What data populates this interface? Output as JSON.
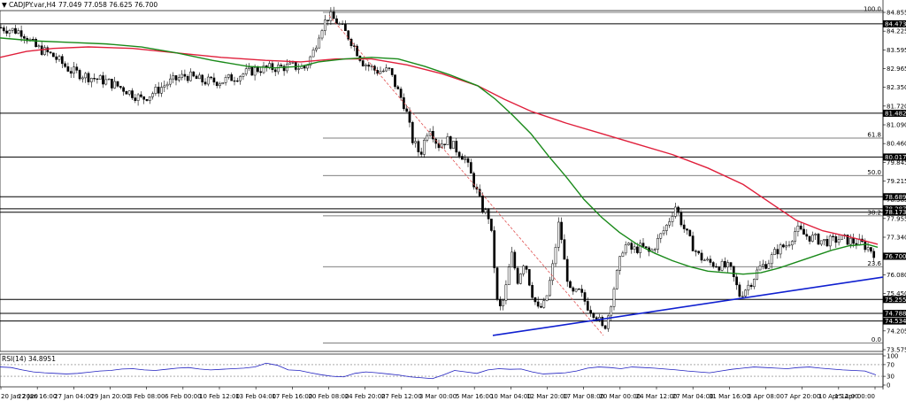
{
  "header": {
    "symbol": "CADJPY.var,H4",
    "ohlc": "77.049 77.058 76.625 76.700"
  },
  "rsi_header": "RSI(14) 34.8951",
  "colors": {
    "bull": "#000000",
    "bear": "#000000",
    "ma_fast": "#1a8a1a",
    "ma_slow": "#e0203c",
    "trend": "#1020d0",
    "fib_diag": "#e05050",
    "hline": "#000000",
    "fib": "#555555",
    "rsi": "#2020c0"
  },
  "chart_data": [
    {
      "type": "candlestick",
      "title": "CADJPY.var,H4",
      "ylim": [
        73.575,
        84.855
      ],
      "y_ticks": [
        "84.855",
        "84.225",
        "83.595",
        "82.965",
        "82.350",
        "81.720",
        "81.090",
        "80.460",
        "79.845",
        "79.215",
        "78.585",
        "77.955",
        "77.340",
        "76.700",
        "76.080",
        "75.450",
        "74.835",
        "74.205",
        "73.575"
      ],
      "x_ticks": [
        "20 Jan 2020",
        "22 Jan 16:00",
        "27 Jan 04:00",
        "29 Jan 20:00",
        "3 Feb 08:00",
        "6 Feb 00:00",
        "10 Feb 12:00",
        "13 Feb 04:00",
        "17 Feb 16:00",
        "20 Feb 08:00",
        "24 Feb 20:00",
        "27 Feb 12:00",
        "3 Mar 00:00",
        "5 Mar 16:00",
        "10 Mar 04:00",
        "12 Mar 20:00",
        "17 Mar 08:00",
        "20 Mar 00:00",
        "24 Mar 12:00",
        "27 Mar 04:00",
        "31 Mar 16:00",
        "3 Apr 08:00",
        "7 Apr 20:00",
        "10 Apr 12:00",
        "15 Apr 00:00"
      ],
      "price_path": [
        [
          0,
          84.35
        ],
        [
          25,
          84.2
        ],
        [
          40,
          83.7
        ],
        [
          60,
          83.4
        ],
        [
          80,
          82.9
        ],
        [
          100,
          82.7
        ],
        [
          120,
          82.55
        ],
        [
          140,
          82.3
        ],
        [
          160,
          81.95
        ],
        [
          175,
          82.2
        ],
        [
          190,
          82.5
        ],
        [
          210,
          82.75
        ],
        [
          230,
          82.55
        ],
        [
          250,
          82.55
        ],
        [
          270,
          82.75
        ],
        [
          290,
          82.95
        ],
        [
          310,
          83.0
        ],
        [
          330,
          83.05
        ],
        [
          345,
          83.0
        ],
        [
          355,
          83.6
        ],
        [
          362,
          84.3
        ],
        [
          372,
          84.75
        ],
        [
          382,
          84.5
        ],
        [
          395,
          84.0
        ],
        [
          410,
          83.2
        ],
        [
          425,
          82.9
        ],
        [
          440,
          82.9
        ],
        [
          450,
          82.2
        ],
        [
          458,
          81.7
        ],
        [
          466,
          80.6
        ],
        [
          475,
          80.1
        ],
        [
          485,
          81.1
        ],
        [
          495,
          80.4
        ],
        [
          505,
          80.6
        ],
        [
          515,
          80.3
        ],
        [
          525,
          80.0
        ],
        [
          535,
          79.2
        ],
        [
          545,
          78.3
        ],
        [
          553,
          78.0
        ],
        [
          557,
          77.0
        ],
        [
          563,
          74.8
        ],
        [
          570,
          75.3
        ],
        [
          578,
          76.8
        ],
        [
          585,
          75.9
        ],
        [
          593,
          76.6
        ],
        [
          600,
          75.6
        ],
        [
          608,
          74.9
        ],
        [
          616,
          75.1
        ],
        [
          624,
          76.2
        ],
        [
          632,
          77.9
        ],
        [
          638,
          76.5
        ],
        [
          645,
          75.4
        ],
        [
          655,
          75.5
        ],
        [
          665,
          75.0
        ],
        [
          675,
          74.7
        ],
        [
          682,
          74.2
        ],
        [
          688,
          74.8
        ],
        [
          695,
          75.8
        ],
        [
          705,
          77.1
        ],
        [
          715,
          76.9
        ],
        [
          725,
          77.0
        ],
        [
          735,
          76.8
        ],
        [
          745,
          77.3
        ],
        [
          755,
          77.8
        ],
        [
          763,
          78.4
        ],
        [
          772,
          77.7
        ],
        [
          780,
          77.2
        ],
        [
          790,
          76.7
        ],
        [
          800,
          76.5
        ],
        [
          812,
          76.4
        ],
        [
          825,
          76.3
        ],
        [
          836,
          75.4
        ],
        [
          848,
          75.8
        ],
        [
          858,
          76.3
        ],
        [
          868,
          76.5
        ],
        [
          878,
          76.9
        ],
        [
          890,
          77.1
        ],
        [
          900,
          77.6
        ],
        [
          910,
          77.4
        ],
        [
          920,
          77.3
        ],
        [
          930,
          77.2
        ],
        [
          940,
          77.2
        ],
        [
          950,
          77.3
        ],
        [
          962,
          77.2
        ],
        [
          975,
          77.1
        ],
        [
          985,
          76.9
        ],
        [
          992,
          76.7
        ]
      ],
      "ma_fast_points": [
        [
          0,
          84.0
        ],
        [
          40,
          83.9
        ],
        [
          80,
          83.85
        ],
        [
          120,
          83.8
        ],
        [
          160,
          83.7
        ],
        [
          200,
          83.5
        ],
        [
          240,
          83.25
        ],
        [
          280,
          83.05
        ],
        [
          310,
          83.0
        ],
        [
          340,
          83.05
        ],
        [
          360,
          83.2
        ],
        [
          390,
          83.3
        ],
        [
          420,
          83.35
        ],
        [
          450,
          83.3
        ],
        [
          480,
          83.05
        ],
        [
          510,
          82.75
        ],
        [
          540,
          82.4
        ],
        [
          560,
          81.95
        ],
        [
          580,
          81.4
        ],
        [
          600,
          80.8
        ],
        [
          620,
          80.05
        ],
        [
          640,
          79.35
        ],
        [
          660,
          78.6
        ],
        [
          680,
          78.0
        ],
        [
          700,
          77.5
        ],
        [
          720,
          77.1
        ],
        [
          740,
          76.8
        ],
        [
          760,
          76.55
        ],
        [
          780,
          76.35
        ],
        [
          800,
          76.2
        ],
        [
          820,
          76.15
        ],
        [
          840,
          76.1
        ],
        [
          860,
          76.15
        ],
        [
          880,
          76.3
        ],
        [
          900,
          76.5
        ],
        [
          920,
          76.7
        ],
        [
          940,
          76.9
        ],
        [
          960,
          77.05
        ],
        [
          980,
          77.1
        ],
        [
          992,
          77.0
        ]
      ],
      "ma_slow_points": [
        [
          0,
          83.35
        ],
        [
          30,
          83.55
        ],
        [
          60,
          83.65
        ],
        [
          100,
          83.7
        ],
        [
          150,
          83.65
        ],
        [
          200,
          83.5
        ],
        [
          250,
          83.35
        ],
        [
          300,
          83.25
        ],
        [
          340,
          83.2
        ],
        [
          380,
          83.3
        ],
        [
          420,
          83.3
        ],
        [
          460,
          83.1
        ],
        [
          500,
          82.8
        ],
        [
          540,
          82.4
        ],
        [
          570,
          81.95
        ],
        [
          600,
          81.55
        ],
        [
          640,
          81.15
        ],
        [
          680,
          80.8
        ],
        [
          720,
          80.45
        ],
        [
          760,
          80.1
        ],
        [
          800,
          79.65
        ],
        [
          840,
          79.1
        ],
        [
          870,
          78.5
        ],
        [
          900,
          77.9
        ],
        [
          930,
          77.55
        ],
        [
          960,
          77.35
        ],
        [
          992,
          77.1
        ]
      ],
      "trendline": [
        [
          557,
          74.05
        ],
        [
          998,
          76.0
        ]
      ],
      "fib_diagonal": [
        [
          372,
          84.75
        ],
        [
          682,
          74.05
        ]
      ],
      "horizontal_levels": [
        {
          "price": 84.473,
          "label": "84.473",
          "x0": 0
        },
        {
          "price": 81.482,
          "label": "81.482",
          "x0": 0
        },
        {
          "price": 80.017,
          "label": "80.017",
          "x0": 0
        },
        {
          "price": 78.689,
          "label": "78.689",
          "x0": 0
        },
        {
          "price": 78.287,
          "label": "78.287",
          "x0": 0
        },
        {
          "price": 78.173,
          "label": "78.173",
          "x0": 0
        },
        {
          "price": 75.255,
          "label": "75.255",
          "x0": 0
        },
        {
          "price": 74.788,
          "label": "74.788",
          "x0": 0
        },
        {
          "price": 74.534,
          "label": "74.534",
          "x0": 0
        }
      ],
      "fib_levels": [
        {
          "label": "100.0",
          "price": 84.855
        },
        {
          "label": "61.8",
          "price": 80.65
        },
        {
          "label": "50.0",
          "price": 79.4
        },
        {
          "label": "38.2",
          "price": 78.05
        },
        {
          "label": "23.6",
          "price": 76.35
        },
        {
          "label": "0.0",
          "price": 73.8
        }
      ],
      "last_price": {
        "price": 76.7,
        "label": "76.700"
      }
    },
    {
      "type": "line",
      "title": "RSI(14) 34.8951",
      "ylim": [
        0,
        100
      ],
      "y_ticks": [
        "100",
        "70",
        "30",
        "0"
      ],
      "levels": [
        70,
        30
      ],
      "values": [
        62,
        60,
        52,
        45,
        42,
        40,
        38,
        40,
        44,
        48,
        50,
        55,
        56,
        52,
        50,
        54,
        58,
        60,
        55,
        52,
        54,
        56,
        58,
        62,
        75,
        68,
        52,
        50,
        42,
        35,
        30,
        28,
        40,
        45,
        42,
        38,
        34,
        28,
        25,
        22,
        35,
        50,
        45,
        40,
        52,
        56,
        54,
        55,
        45,
        38,
        40,
        42,
        48,
        58,
        62,
        60,
        56,
        62,
        60,
        58,
        55,
        52,
        48,
        45,
        42,
        48,
        54,
        58,
        62,
        60,
        58,
        56,
        60,
        62,
        58,
        55,
        52,
        50,
        48,
        35
      ]
    }
  ]
}
